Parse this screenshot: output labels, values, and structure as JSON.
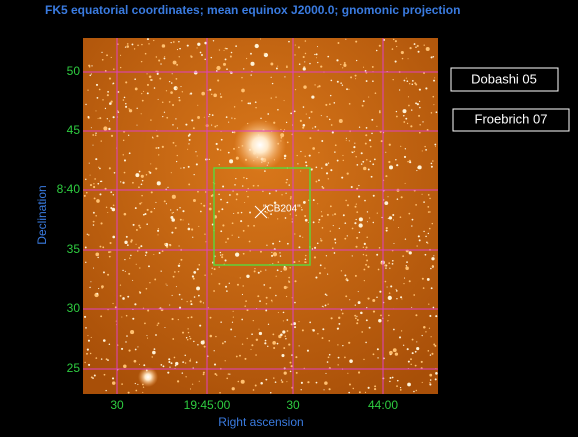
{
  "title": "FK5 equatorial coordinates; mean equinox J2000.0; gnomonic projection",
  "x_axis": {
    "label": "Right ascension",
    "tick_labels": [
      "30",
      "19:45:00",
      "30",
      "44:00"
    ]
  },
  "y_axis": {
    "label": "Declination",
    "tick_labels": [
      "50",
      "45",
      "8:40",
      "35",
      "30",
      "25"
    ]
  },
  "annotation": "\"CB204\"",
  "buttons": [
    "Dobashi 05",
    "Froebrich 07"
  ]
}
